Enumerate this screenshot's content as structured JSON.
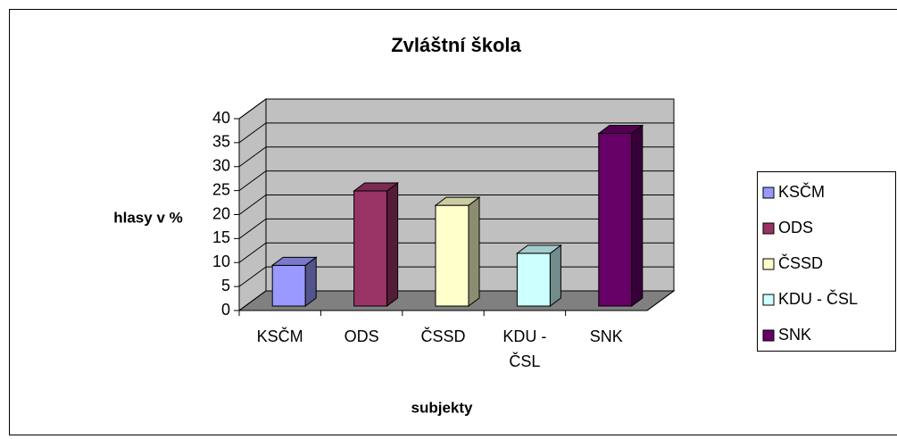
{
  "chart_data": {
    "type": "bar3d",
    "title": "Zvláštní škola",
    "x_label": "subjekty",
    "y_label": "hlasy v %",
    "categories": [
      "KSČM",
      "ODS",
      "ČSSD",
      "KDU - ČSL",
      "SNK"
    ],
    "values": [
      8.5,
      24,
      21,
      11,
      36
    ],
    "colors": [
      "#9999ff",
      "#993366",
      "#ffffcc",
      "#ccffff",
      "#660066"
    ],
    "ylim": [
      0,
      40
    ],
    "yticks": [
      0,
      5,
      10,
      15,
      20,
      25,
      30,
      35,
      40
    ],
    "grid": true,
    "legend": "right"
  }
}
